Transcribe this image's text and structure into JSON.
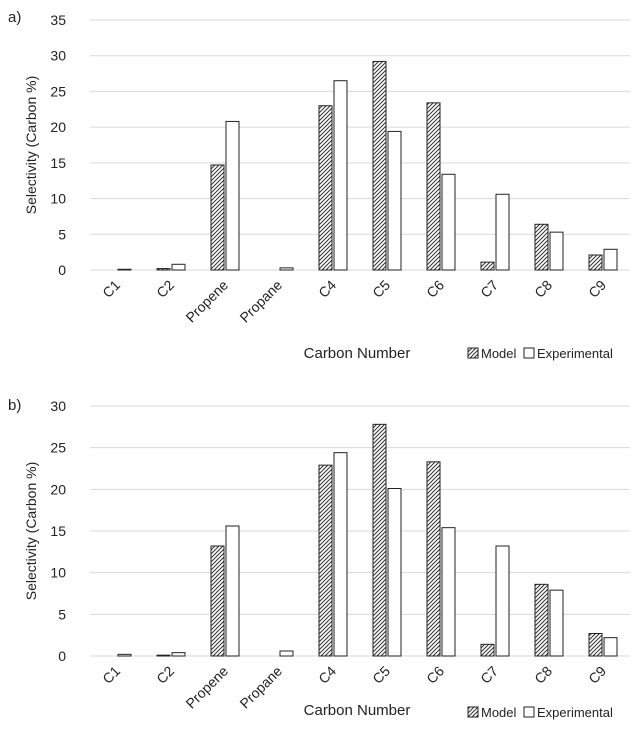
{
  "chart_data": [
    {
      "type": "bar",
      "panel_label": "a)",
      "title": "",
      "xlabel": "Carbon Number",
      "ylabel": "Selectivity (Carbon %)",
      "ylim": [
        0,
        35
      ],
      "yticks": [
        0,
        5,
        10,
        15,
        20,
        25,
        30,
        35
      ],
      "grid": true,
      "legend_position": "bottom-right",
      "categories": [
        "C1",
        "C2",
        "Propene",
        "Propane",
        "C4",
        "C5",
        "C6",
        "C7",
        "C8",
        "C9"
      ],
      "series": [
        {
          "name": "Model",
          "fill": "hatch",
          "values": [
            0.0,
            0.2,
            14.7,
            0.0,
            23.0,
            29.2,
            23.4,
            1.1,
            6.4,
            2.1
          ]
        },
        {
          "name": "Experimental",
          "fill": "white",
          "values": [
            0.1,
            0.8,
            20.8,
            0.3,
            26.5,
            19.4,
            13.4,
            10.6,
            5.3,
            2.9
          ]
        }
      ]
    },
    {
      "type": "bar",
      "panel_label": "b)",
      "title": "",
      "xlabel": "Carbon Number",
      "ylabel": "Selectivity (Carbon %)",
      "ylim": [
        0,
        30
      ],
      "yticks": [
        0,
        5,
        10,
        15,
        20,
        25,
        30
      ],
      "grid": true,
      "legend_position": "bottom-right",
      "categories": [
        "C1",
        "C2",
        "Propene",
        "Propane",
        "C4",
        "C5",
        "C6",
        "C7",
        "C8",
        "C9"
      ],
      "series": [
        {
          "name": "Model",
          "fill": "hatch",
          "values": [
            0.0,
            0.1,
            13.2,
            0.0,
            22.9,
            27.8,
            23.3,
            1.4,
            8.6,
            2.7
          ]
        },
        {
          "name": "Experimental",
          "fill": "white",
          "values": [
            0.2,
            0.4,
            15.6,
            0.6,
            24.4,
            20.1,
            15.4,
            13.2,
            7.9,
            2.2
          ]
        }
      ]
    }
  ],
  "colors": {
    "bar_outline": "#222222",
    "grid": "#d9d9d9",
    "text": "#222222"
  }
}
